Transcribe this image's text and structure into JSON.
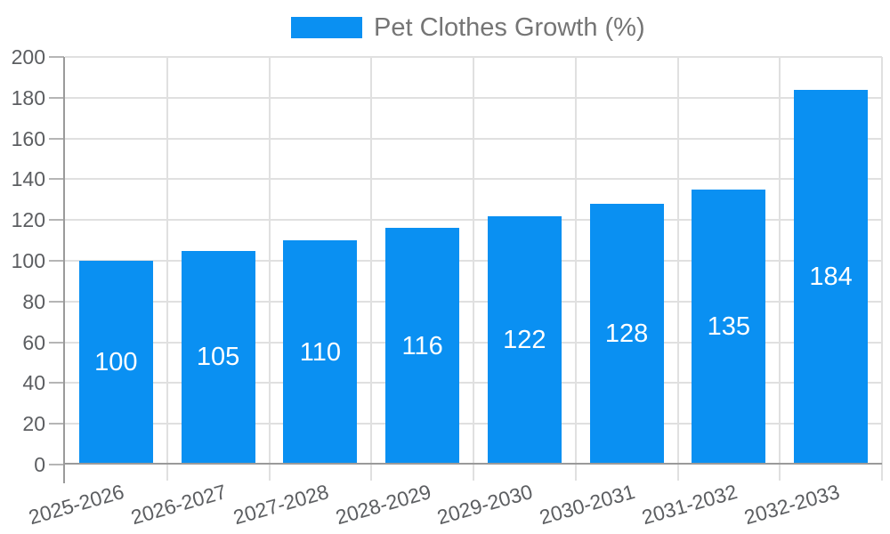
{
  "chart_data": {
    "type": "bar",
    "title": "Pet Clothes Growth (%)",
    "categories": [
      "2025-2026",
      "2026-2027",
      "2027-2028",
      "2028-2029",
      "2029-2030",
      "2030-2031",
      "2031-2032",
      "2032-2033"
    ],
    "values": [
      100,
      105,
      110,
      116,
      122,
      128,
      135,
      184
    ],
    "series": [
      {
        "name": "Pet Clothes Growth (%)",
        "values": [
          100,
          105,
          110,
          116,
          122,
          128,
          135,
          184
        ]
      }
    ],
    "xlabel": "",
    "ylabel": "",
    "ylim": [
      0,
      200
    ],
    "y_ticks": [
      0,
      20,
      40,
      60,
      80,
      100,
      120,
      140,
      160,
      180,
      200
    ],
    "grid": "horizontal and vertical category boundaries",
    "legend_position": "top-center",
    "bar_labels_shown": true,
    "x_label_rotation_deg": -16
  },
  "legend": {
    "label": "Pet Clothes Growth (%)"
  },
  "colors": {
    "bar": "#0a90f2",
    "bar_label": "#ffffff",
    "grid": "#e0e0e0",
    "axis": "#9a9a9a",
    "tick": "#b5b5b5",
    "tick_label": "#5c5e61",
    "legend_text": "#757575",
    "background": "#ffffff"
  }
}
